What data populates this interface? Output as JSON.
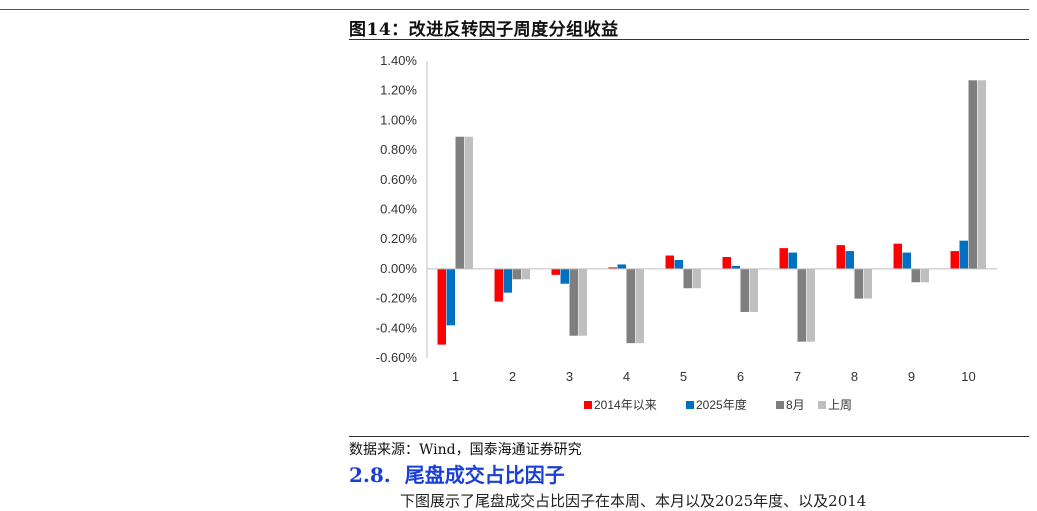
{
  "figure": {
    "title": "图14：改进反转因子周度分组收益",
    "source": "数据来源：Wind，国泰海通证券研究"
  },
  "section": {
    "number": "2.8.",
    "title": "尾盘成交占比因子",
    "partial_text": "下图展示了尾盘成交占比因子在本周、本月以及2025年度、以及2014"
  },
  "chart_data": {
    "type": "bar",
    "categories": [
      "1",
      "2",
      "3",
      "4",
      "5",
      "6",
      "7",
      "8",
      "9",
      "10"
    ],
    "ylim": [
      -0.006,
      0.014
    ],
    "yticks": [
      -0.006,
      -0.004,
      -0.002,
      0,
      0.002,
      0.004,
      0.006,
      0.008,
      0.01,
      0.012,
      0.014
    ],
    "ytick_labels": [
      "-0.60%",
      "-0.40%",
      "-0.20%",
      "0.00%",
      "0.20%",
      "0.40%",
      "0.60%",
      "0.80%",
      "1.00%",
      "1.20%",
      "1.40%"
    ],
    "grid": false,
    "legend_position": "bottom",
    "series": [
      {
        "name": "2014年以来",
        "color": "#ff0000",
        "values": [
          -0.0051,
          -0.0022,
          -0.0004,
          0.0001,
          0.0009,
          0.0008,
          0.0014,
          0.0016,
          0.0017,
          0.0012
        ]
      },
      {
        "name": "2025年度",
        "color": "#0070c0",
        "values": [
          -0.0038,
          -0.0016,
          -0.001,
          0.0003,
          0.0006,
          0.0002,
          0.0011,
          0.0012,
          0.0011,
          0.0019
        ]
      },
      {
        "name": "8月",
        "color": "#7f7f7f",
        "values": [
          0.0089,
          -0.0007,
          -0.0045,
          -0.005,
          -0.0013,
          -0.0029,
          -0.0049,
          -0.002,
          -0.0009,
          0.0127
        ]
      },
      {
        "name": "上周",
        "color": "#bfbfbf",
        "values": [
          0.0089,
          -0.0007,
          -0.0045,
          -0.005,
          -0.0013,
          -0.0029,
          -0.0049,
          -0.002,
          -0.0009,
          0.0127
        ]
      }
    ]
  }
}
